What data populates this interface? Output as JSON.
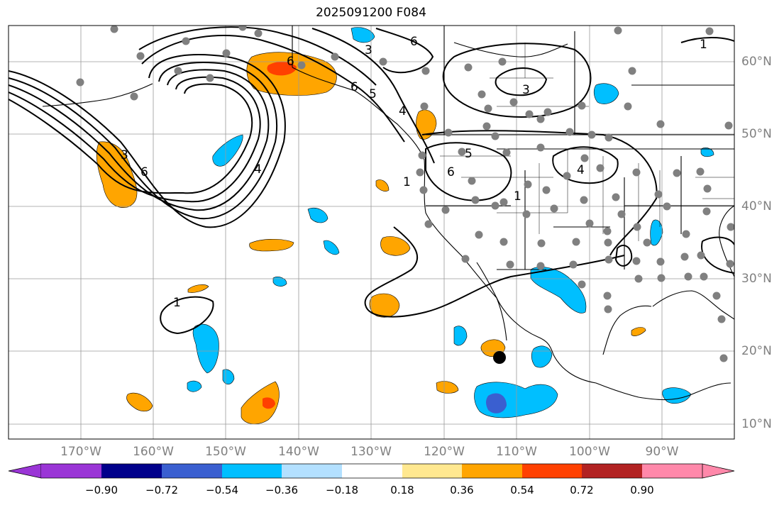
{
  "title": "2025091200 F084",
  "lon_labels": [
    "170°W",
    "160°W",
    "150°W",
    "140°W",
    "130°W",
    "120°W",
    "110°W",
    "100°W",
    "90°W"
  ],
  "lat_labels": [
    "60°N",
    "50°N",
    "40°N",
    "30°N",
    "20°N",
    "10°N"
  ],
  "colorbar": {
    "ticks": [
      "−0.90",
      "−0.72",
      "−0.54",
      "−0.36",
      "−0.18",
      "0.18",
      "0.36",
      "0.54",
      "0.72",
      "0.90"
    ],
    "colors": [
      "#9a35d6",
      "#00008b",
      "#3a5fd0",
      "#00bfff",
      "#b3e0ff",
      "#ffffff",
      "#ffe890",
      "#ffa500",
      "#ff4000",
      "#b22222",
      "#ff88aa"
    ]
  },
  "contour_labels": [
    "6",
    "3",
    "6",
    "3",
    "4",
    "5",
    "6",
    "4",
    "3",
    "1",
    "4",
    "1",
    "6",
    "5",
    "6",
    "1",
    "1"
  ]
}
